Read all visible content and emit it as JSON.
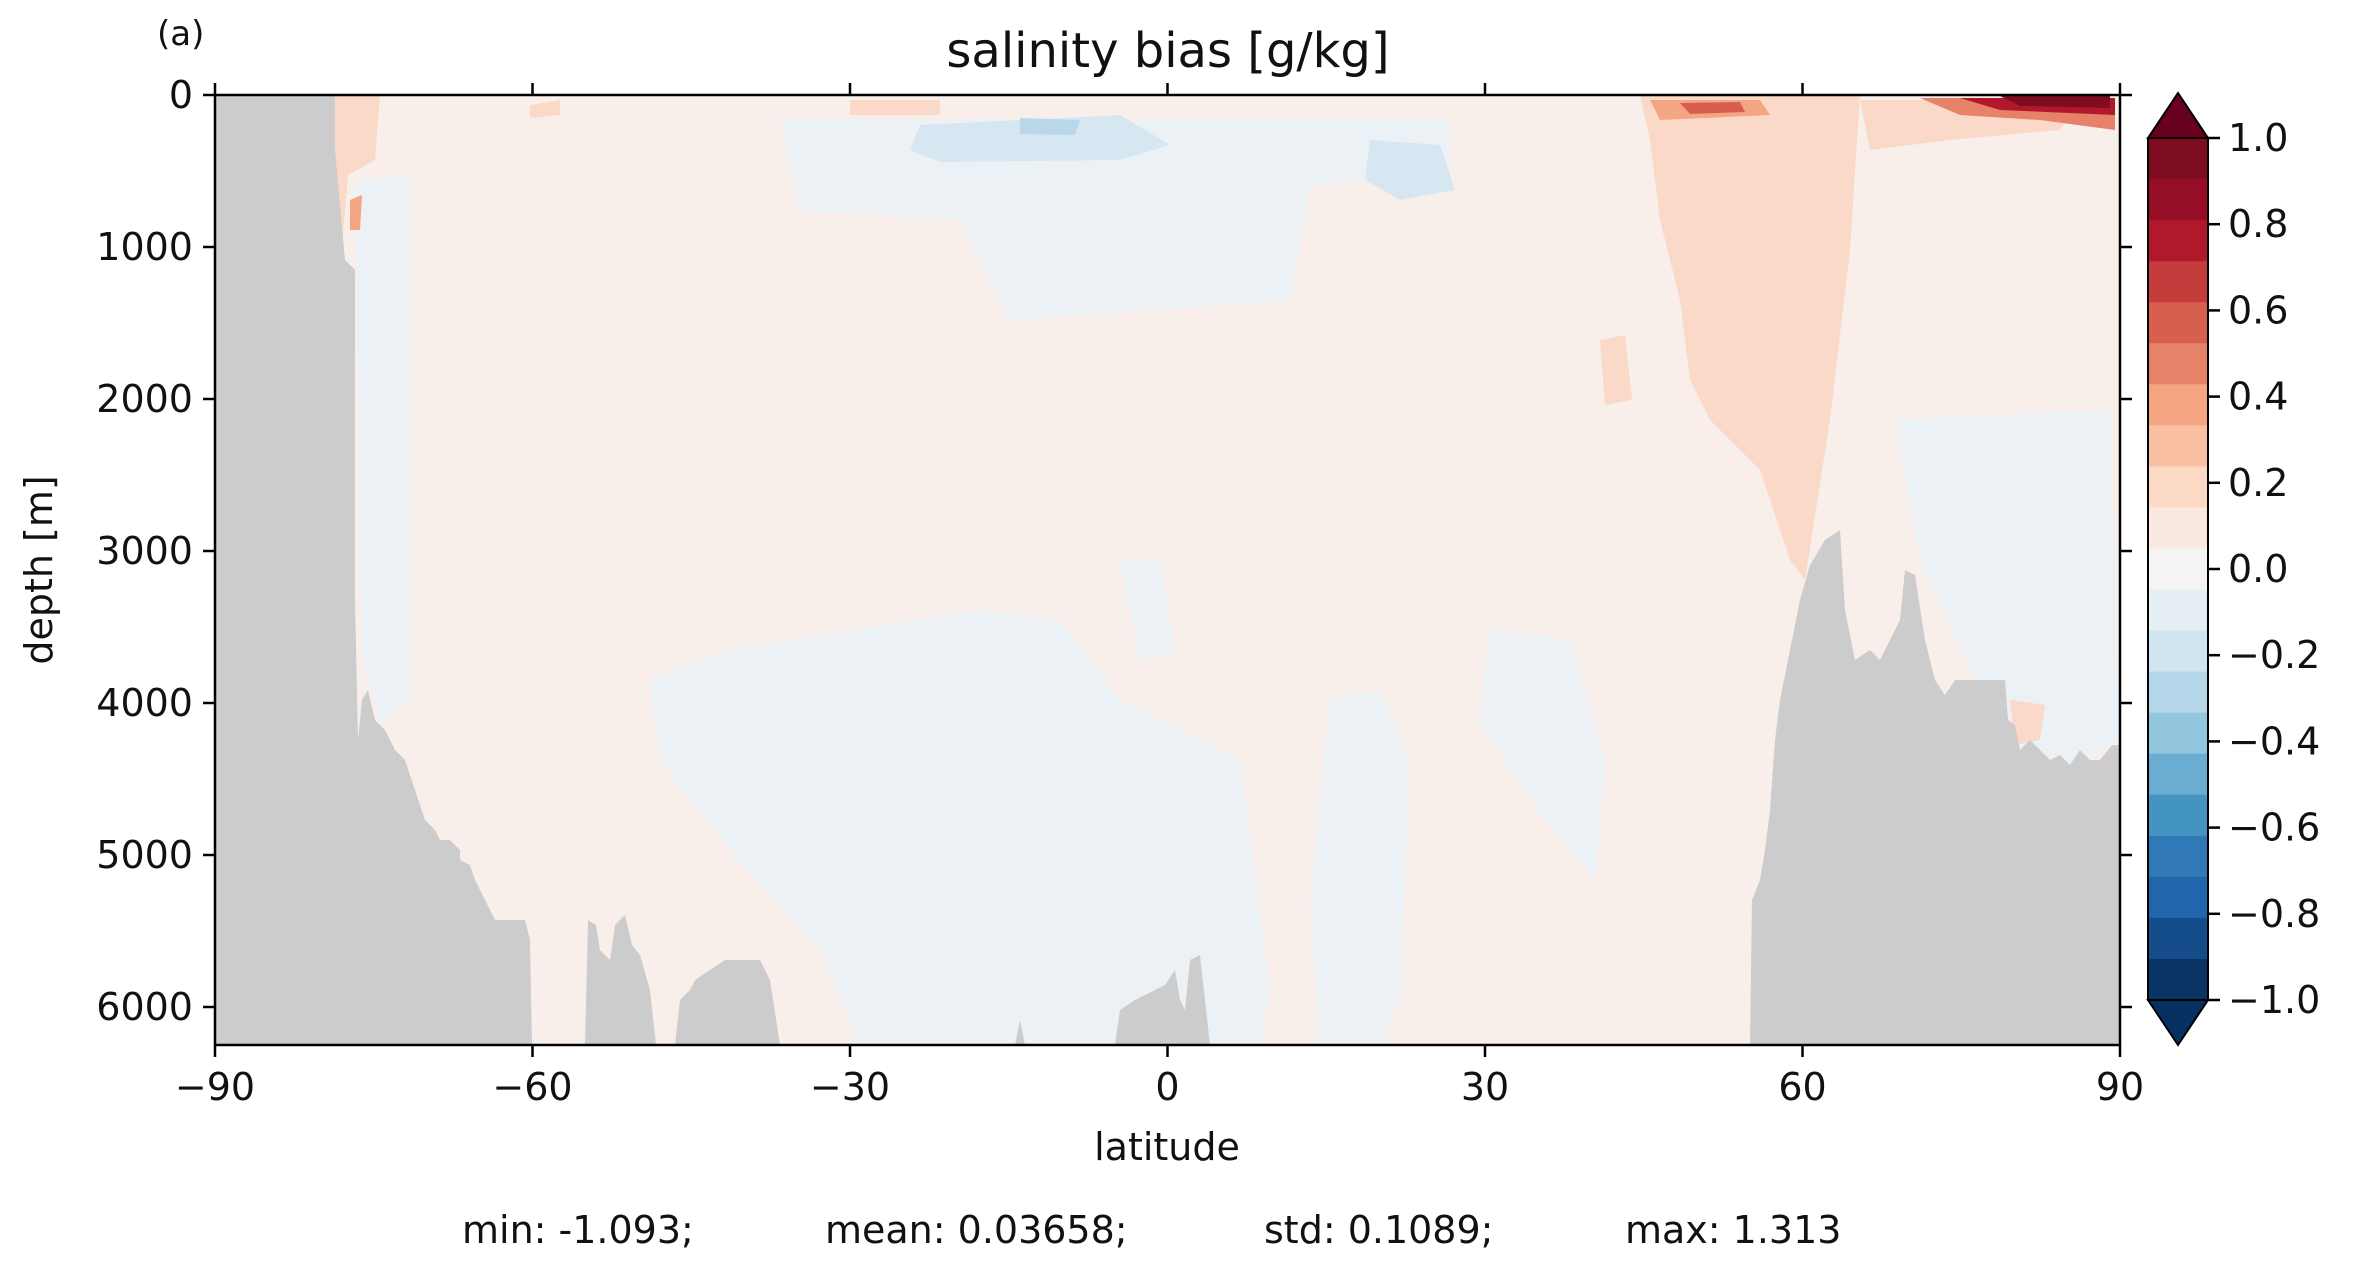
{
  "panel_label": "(a)",
  "chart_data": {
    "type": "heatmap",
    "title": "salinity bias [g/kg]",
    "xlabel": "latitude",
    "ylabel": "depth [m]",
    "xlim": [
      -90,
      90
    ],
    "ylim": [
      6250,
      0
    ],
    "y_inverted": true,
    "x_ticks": [
      -90,
      -60,
      -30,
      0,
      30,
      60,
      90
    ],
    "x_tick_labels": [
      "−90",
      "−60",
      "−30",
      "0",
      "30",
      "60",
      "90"
    ],
    "y_ticks": [
      0,
      1000,
      2000,
      3000,
      4000,
      5000,
      6000
    ],
    "y_tick_labels": [
      "0",
      "1000",
      "2000",
      "3000",
      "4000",
      "5000",
      "6000"
    ],
    "colorbar": {
      "vmin": -1.0,
      "vmax": 1.0,
      "levels": 21,
      "ticks": [
        1.0,
        0.8,
        0.6,
        0.4,
        0.2,
        0.0,
        -0.2,
        -0.4,
        -0.6,
        -0.8,
        -1.0
      ],
      "tick_labels": [
        "1.0",
        "0.8",
        "0.6",
        "0.4",
        "0.2",
        "0.0",
        "−0.2",
        "−0.4",
        "−0.6",
        "−0.8",
        "−1.0"
      ],
      "extend": "both",
      "cmap": "RdBu_r",
      "colors_top_to_bottom": [
        "#7f0d22",
        "#960e26",
        "#b2182b",
        "#c43c3c",
        "#d6604d",
        "#e58268",
        "#f4a582",
        "#f8bfa3",
        "#fcd9c5",
        "#fae9e0",
        "#f5f4f3",
        "#e6eff4",
        "#d1e5f0",
        "#b4d6e8",
        "#92c5de",
        "#6bacd1",
        "#4393c3",
        "#3179b6",
        "#2166ac",
        "#154c8a",
        "#0a3366"
      ],
      "extend_top_color": "#67001f",
      "extend_bottom_color": "#053061"
    },
    "land_color": "#cccccc",
    "background_value_color": "#f8efeb",
    "summary_stats": {
      "min": "-1.093",
      "mean": "0.03658",
      "std": "0.1089",
      "max": "1.313"
    }
  },
  "stats_text": {
    "min": "min: -1.093;",
    "mean": "mean: 0.03658;",
    "std": "std: 0.1089;",
    "max": "max: 1.313"
  }
}
